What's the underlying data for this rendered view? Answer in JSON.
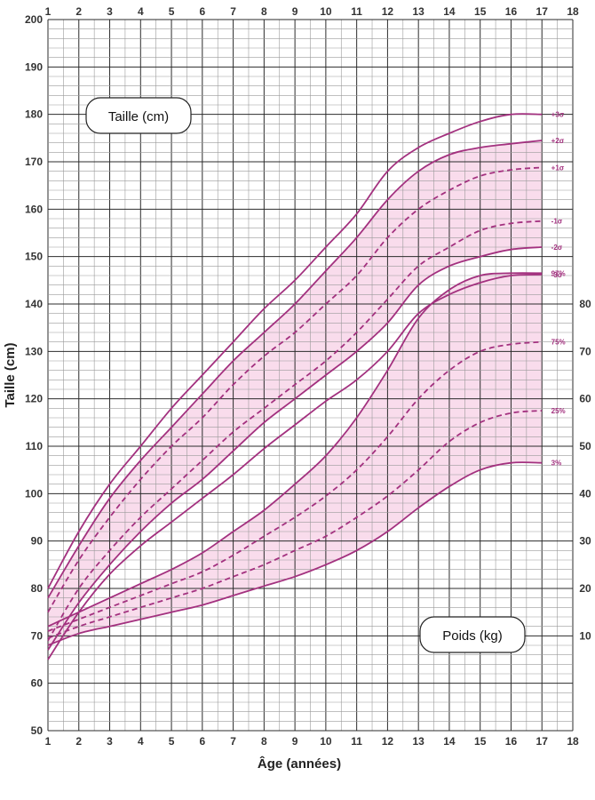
{
  "colors": {
    "curve": "#a3317f",
    "band": "#f9dcec",
    "grid_major": "#2b2b2b",
    "grid_minor": "#9a9a9a",
    "tick_text": "#333333"
  },
  "chart_data": {
    "type": "line",
    "x": {
      "label": "Âge (années)",
      "range": [
        1,
        18
      ],
      "ticks": [
        1,
        2,
        3,
        4,
        5,
        6,
        7,
        8,
        9,
        10,
        11,
        12,
        13,
        14,
        15,
        16,
        17,
        18
      ],
      "tick_labels": [
        "1",
        "2",
        "3",
        "4",
        "5",
        "6",
        "7",
        "8",
        "9",
        "10",
        "11",
        "12",
        "13",
        "14",
        "15",
        "16",
        "17",
        "18"
      ]
    },
    "y_left": {
      "label": "Taille (cm)",
      "range": [
        50,
        200
      ],
      "ticks": [
        50,
        60,
        70,
        80,
        90,
        100,
        110,
        120,
        130,
        140,
        150,
        160,
        170,
        180,
        190,
        200
      ],
      "tick_labels": [
        "50",
        "60",
        "70",
        "80",
        "90",
        "100",
        "110",
        "120",
        "130",
        "140",
        "150",
        "160",
        "170",
        "180",
        "190",
        "200"
      ]
    },
    "y_right": {
      "label": "",
      "range": [
        -10,
        140
      ],
      "ticks": [
        10,
        20,
        30,
        40,
        50,
        60,
        70,
        80
      ],
      "tick_labels": [
        "10",
        "20",
        "30",
        "40",
        "50",
        "60",
        "70",
        "80"
      ]
    },
    "grid": true,
    "height_box_label": "Taille (cm)",
    "weight_box_label": "Poids (kg)",
    "height_series": [
      {
        "name": "+3σ",
        "style": "solid",
        "x": [
          1,
          2,
          3,
          4,
          5,
          6,
          7,
          8,
          9,
          10,
          11,
          12,
          13,
          14,
          15,
          16,
          17
        ],
        "values": [
          80,
          92,
          102,
          110,
          118,
          125,
          132,
          139,
          145,
          152,
          159,
          168,
          173,
          176,
          178.5,
          180,
          180
        ]
      },
      {
        "name": "+2σ",
        "style": "solid",
        "x": [
          1,
          2,
          3,
          4,
          5,
          6,
          7,
          8,
          9,
          10,
          11,
          12,
          13,
          14,
          15,
          16,
          17
        ],
        "values": [
          78,
          89,
          99,
          107,
          114,
          121,
          128,
          134,
          140,
          147,
          154,
          162,
          168,
          171.5,
          173,
          173.8,
          174.5
        ]
      },
      {
        "name": "+1σ",
        "style": "dashed",
        "x": [
          1,
          2,
          3,
          4,
          5,
          6,
          7,
          8,
          9,
          10,
          11,
          12,
          13,
          14,
          15,
          16,
          17
        ],
        "values": [
          75,
          86,
          95,
          103,
          110,
          116,
          123,
          129,
          134,
          140,
          146,
          154,
          160,
          164,
          167,
          168.3,
          168.8
        ]
      },
      {
        "name": "-1σ",
        "style": "dashed",
        "x": [
          1,
          2,
          3,
          4,
          5,
          6,
          7,
          8,
          9,
          10,
          11,
          12,
          13,
          14,
          15,
          16,
          17
        ],
        "values": [
          69,
          80,
          88,
          95,
          101,
          107,
          113,
          118,
          123,
          128,
          134,
          141,
          148,
          152,
          155.5,
          157,
          157.5
        ]
      },
      {
        "name": "-2σ",
        "style": "solid",
        "x": [
          1,
          2,
          3,
          4,
          5,
          6,
          7,
          8,
          9,
          10,
          11,
          12,
          13,
          14,
          15,
          16,
          17
        ],
        "values": [
          67,
          77,
          85,
          92,
          98,
          103,
          109,
          115,
          120,
          125,
          130,
          136,
          144,
          148,
          150,
          151.5,
          152
        ]
      },
      {
        "name": "-3σ",
        "style": "solid",
        "x": [
          1,
          2,
          3,
          4,
          5,
          6,
          7,
          8,
          9,
          10,
          11,
          12,
          13,
          14,
          15,
          16,
          17
        ],
        "values": [
          65,
          75,
          83,
          89,
          94,
          99,
          104,
          109.5,
          114.5,
          119.5,
          124,
          130,
          138,
          142,
          144.5,
          146,
          146.2
        ]
      }
    ],
    "weight_series": [
      {
        "name": "97%",
        "style": "solid",
        "x": [
          1,
          2,
          3,
          4,
          5,
          6,
          7,
          8,
          9,
          10,
          11,
          12,
          13,
          14,
          15,
          16,
          17
        ],
        "values": [
          12,
          15,
          18,
          21,
          24,
          27.5,
          32,
          36.5,
          42,
          48,
          56,
          66,
          77,
          83,
          86,
          86.5,
          86.5
        ]
      },
      {
        "name": "75%",
        "style": "dashed",
        "x": [
          1,
          2,
          3,
          4,
          5,
          6,
          7,
          8,
          9,
          10,
          11,
          12,
          13,
          14,
          15,
          16,
          17
        ],
        "values": [
          11,
          13.5,
          16,
          18.5,
          21,
          23.5,
          27,
          31,
          35,
          39.5,
          45,
          52,
          60,
          66,
          70,
          71.5,
          72
        ]
      },
      {
        "name": "25%",
        "style": "dashed",
        "x": [
          1,
          2,
          3,
          4,
          5,
          6,
          7,
          8,
          9,
          10,
          11,
          12,
          13,
          14,
          15,
          16,
          17
        ],
        "values": [
          9.5,
          12,
          14,
          16,
          18,
          20,
          22.5,
          25,
          28,
          31,
          35,
          39.5,
          45,
          51,
          55,
          57,
          57.5
        ]
      },
      {
        "name": "3%",
        "style": "solid",
        "x": [
          1,
          2,
          3,
          4,
          5,
          6,
          7,
          8,
          9,
          10,
          11,
          12,
          13,
          14,
          15,
          16,
          17
        ],
        "values": [
          8,
          10.5,
          12,
          13.5,
          15,
          16.5,
          18.5,
          20.5,
          22.5,
          25,
          28,
          32,
          37,
          41.5,
          45,
          46.5,
          46.5
        ]
      }
    ]
  }
}
